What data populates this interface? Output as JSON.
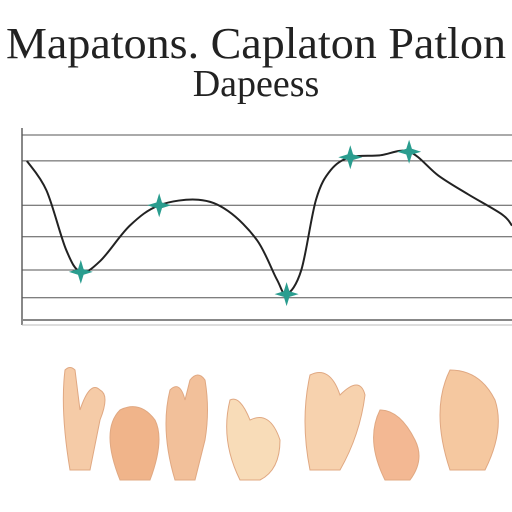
{
  "chart_data": {
    "type": "line",
    "title": "Mapatons. Caplaton Patlon",
    "subtitle": "Dapeess",
    "x": [
      1,
      5,
      9,
      12,
      16,
      22,
      28,
      36,
      42,
      48,
      52,
      54,
      57,
      60,
      63,
      67,
      73,
      79,
      85,
      91,
      98,
      100
    ],
    "series": [
      {
        "color": "#222222",
        "values": [
          86,
          70,
          38,
          26,
          32,
          51,
          62,
          65,
          59,
          43,
          22,
          14,
          27,
          65,
          81,
          88,
          89,
          91,
          78,
          68,
          57,
          51
        ]
      },
      {
        "color": "#2a9d8f",
        "values": [
          null,
          null,
          null,
          26,
          null,
          null,
          62,
          null,
          null,
          null,
          null,
          14,
          null,
          null,
          null,
          88,
          null,
          91,
          null,
          null,
          null,
          null
        ]
      }
    ],
    "xlim": [
      0,
      100
    ],
    "ylim": [
      0,
      100
    ],
    "yticks": [
      12,
      27,
      45,
      62,
      86,
      100
    ],
    "grid": true
  }
}
